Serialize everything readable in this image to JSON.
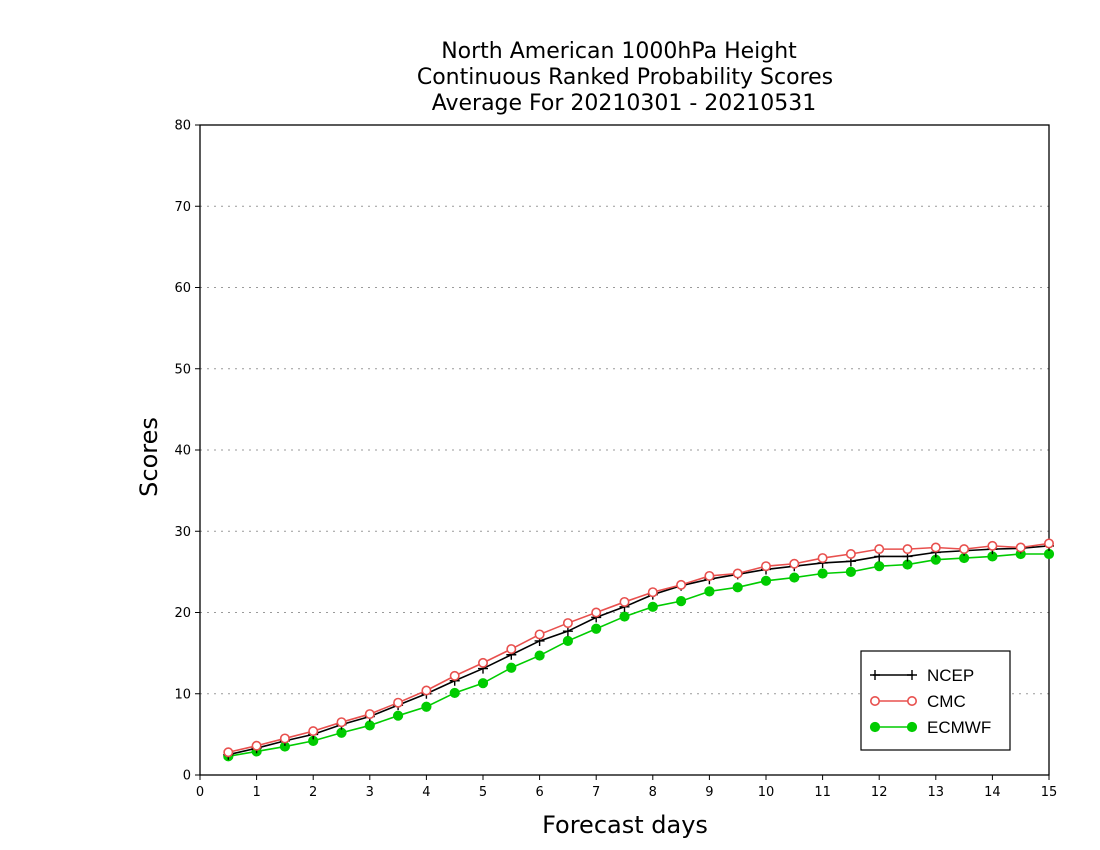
{
  "chart_data": {
    "type": "line",
    "title_lines": [
      "North American 1000hPa Height",
      "Continuous Ranked Probability Scores",
      "Average For 20210301 - 20210531"
    ],
    "xlabel": "Forecast days",
    "ylabel": "Scores",
    "xlim": [
      0,
      15
    ],
    "ylim": [
      0,
      80
    ],
    "xticks": [
      0,
      1,
      2,
      3,
      4,
      5,
      6,
      7,
      8,
      9,
      10,
      11,
      12,
      13,
      14,
      15
    ],
    "yticks": [
      0,
      10,
      20,
      30,
      40,
      50,
      60,
      70,
      80
    ],
    "grid": "horizontal dotted",
    "legend_position": "bottom-right",
    "x": [
      0.5,
      1,
      1.5,
      2,
      2.5,
      3,
      3.5,
      4,
      4.5,
      5,
      5.5,
      6,
      6.5,
      7,
      7.5,
      8,
      8.5,
      9,
      9.5,
      10,
      10.5,
      11,
      11.5,
      12,
      12.5,
      13,
      13.5,
      14,
      14.5,
      15
    ],
    "series": [
      {
        "name": "NCEP",
        "color": "#000000",
        "marker": "plus",
        "values": [
          2.5,
          3.3,
          4.2,
          5.0,
          6.2,
          7.2,
          8.6,
          10.0,
          11.6,
          13.1,
          14.8,
          16.5,
          17.7,
          19.4,
          20.7,
          22.2,
          23.3,
          24.1,
          24.7,
          25.3,
          25.7,
          26.1,
          26.3,
          26.9,
          26.9,
          27.4,
          27.6,
          27.8,
          27.9,
          28.2
        ]
      },
      {
        "name": "CMC",
        "color": "#e8504e",
        "marker": "open-circle",
        "values": [
          2.8,
          3.6,
          4.5,
          5.4,
          6.5,
          7.5,
          8.9,
          10.4,
          12.2,
          13.8,
          15.5,
          17.3,
          18.7,
          20.0,
          21.3,
          22.5,
          23.4,
          24.5,
          24.8,
          25.7,
          26.0,
          26.7,
          27.2,
          27.8,
          27.8,
          28.0,
          27.8,
          28.2,
          28.0,
          28.5
        ]
      },
      {
        "name": "ECMWF",
        "color": "#00cc00",
        "marker": "filled-circle",
        "values": [
          2.3,
          2.9,
          3.5,
          4.2,
          5.2,
          6.1,
          7.3,
          8.4,
          10.1,
          11.3,
          13.2,
          14.7,
          16.5,
          18.0,
          19.5,
          20.7,
          21.4,
          22.6,
          23.1,
          23.9,
          24.3,
          24.8,
          25.0,
          25.7,
          25.9,
          26.5,
          26.7,
          26.9,
          27.2,
          27.2
        ]
      }
    ]
  }
}
